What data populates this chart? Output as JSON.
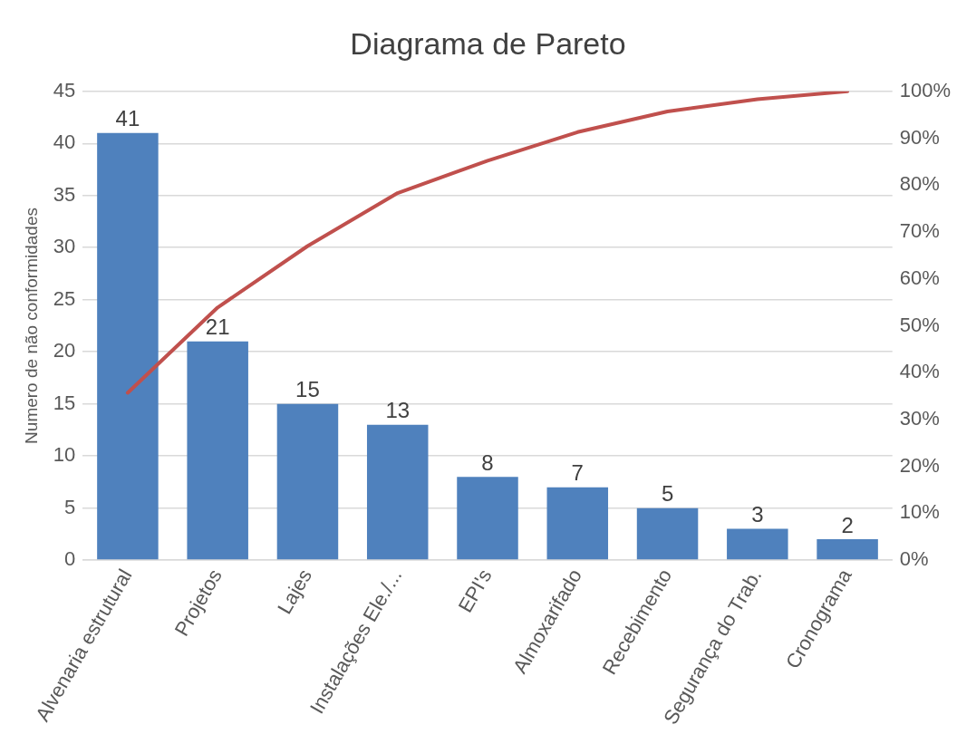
{
  "chart_data": {
    "type": "bar",
    "title": "Diagrama de Pareto",
    "ylabel": "Numero de não conformidades",
    "categories": [
      "Alvenaria estrutural",
      "Projetos",
      "Lajes",
      "Instalações Ele./...",
      "EPI's",
      "Almoxarifado",
      "Recebimento",
      "Segurança do Trab.",
      "Cronograma"
    ],
    "series": [
      {
        "color": "#4f81bd",
        "values": [
          41,
          21,
          15,
          13,
          8,
          7,
          5,
          3,
          2
        ],
        "value_labels": [
          "41",
          "21",
          "15",
          "13",
          "8",
          "7",
          "5",
          "3",
          "2"
        ]
      },
      {
        "type": "line",
        "axis": "y2",
        "color": "#c0504d",
        "values": [
          35.7,
          53.9,
          67.0,
          78.3,
          85.2,
          91.3,
          95.7,
          98.3,
          100
        ]
      }
    ],
    "ylim": [
      0,
      45
    ],
    "yticks": [
      0,
      5,
      10,
      15,
      20,
      25,
      30,
      35,
      40,
      45
    ],
    "y2lim": [
      0,
      100
    ],
    "y2ticks": [
      {
        "value": 0,
        "label": "0%"
      },
      {
        "value": 10,
        "label": "10%"
      },
      {
        "value": 20,
        "label": "20%"
      },
      {
        "value": 30,
        "label": "30%"
      },
      {
        "value": 40,
        "label": "40%"
      },
      {
        "value": 50,
        "label": "50%"
      },
      {
        "value": 60,
        "label": "60%"
      },
      {
        "value": 70,
        "label": "70%"
      },
      {
        "value": 80,
        "label": "80%"
      },
      {
        "value": 90,
        "label": "90%"
      },
      {
        "value": 100,
        "label": "100%"
      }
    ],
    "grid": "y",
    "legend": false,
    "marker": "none",
    "line_style": "solid"
  }
}
